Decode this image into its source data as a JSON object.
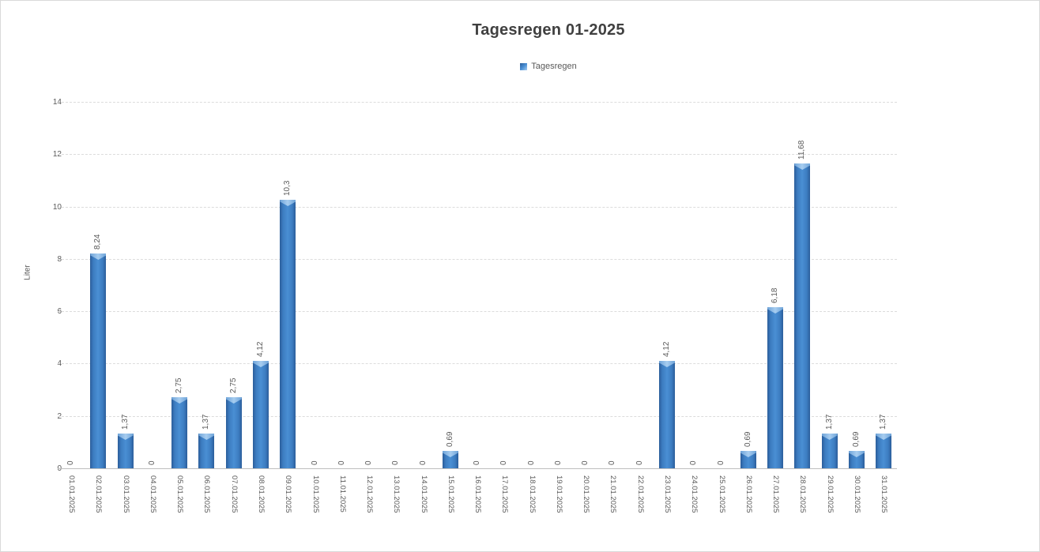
{
  "chart": {
    "title": "Tagesregen 01-2025",
    "y_axis_title": "Liter",
    "legend_label": "Tagesregen"
  },
  "colors": {
    "bar_edge": "#2b5d9a",
    "bar_mid": "#3c7cc0",
    "bar_center": "#4a8fd4",
    "bar_cap_edge": "#6ea3d8",
    "bar_cap_center": "#a7cdf0",
    "title_text": "#404040",
    "axis_text": "#595959",
    "gridline": "#dcdcdc",
    "axis_line": "#bfbfbf"
  },
  "chart_data": {
    "type": "bar",
    "title": "Tagesregen 01-2025",
    "xlabel": "",
    "ylabel": "Liter",
    "legend": [
      "Tagesregen"
    ],
    "legend_position": "top-center",
    "grid": true,
    "gridline_style": "dashed",
    "ylim": [
      0,
      14
    ],
    "yticks": [
      0,
      2,
      4,
      6,
      8,
      10,
      12,
      14
    ],
    "categories": [
      "01.01.2025",
      "02.01.2025",
      "03.01.2025",
      "04.01.2025",
      "05.01.2025",
      "06.01.2025",
      "07.01.2025",
      "08.01.2025",
      "09.01.2025",
      "10.01.2025",
      "11.01.2025",
      "12.01.2025",
      "13.01.2025",
      "14.01.2025",
      "15.01.2025",
      "16.01.2025",
      "17.01.2025",
      "18.01.2025",
      "19.01.2025",
      "20.01.2025",
      "21.01.2025",
      "22.01.2025",
      "23.01.2025",
      "24.01.2025",
      "25.01.2025",
      "26.01.2025",
      "27.01.2025",
      "28.01.2025",
      "29.01.2025",
      "30.01.2025",
      "31.01.2025"
    ],
    "series": [
      {
        "name": "Tagesregen",
        "values": [
          0,
          8.24,
          1.37,
          0,
          2.75,
          1.37,
          2.75,
          4.12,
          10.3,
          0,
          0,
          0,
          0,
          0,
          0.69,
          0,
          0,
          0,
          0,
          0,
          0,
          0,
          4.12,
          0,
          0,
          0.69,
          6.18,
          11.68,
          1.37,
          0.69,
          1.37
        ],
        "data_labels": [
          "0",
          "8,24",
          "1,37",
          "0",
          "2,75",
          "1,37",
          "2,75",
          "4,12",
          "10,3",
          "0",
          "0",
          "0",
          "0",
          "0",
          "0,69",
          "0",
          "0",
          "0",
          "0",
          "0",
          "0",
          "0",
          "4,12",
          "0",
          "0",
          "0,69",
          "6,18",
          "11,68",
          "1,37",
          "0,69",
          "1,37"
        ]
      }
    ]
  }
}
